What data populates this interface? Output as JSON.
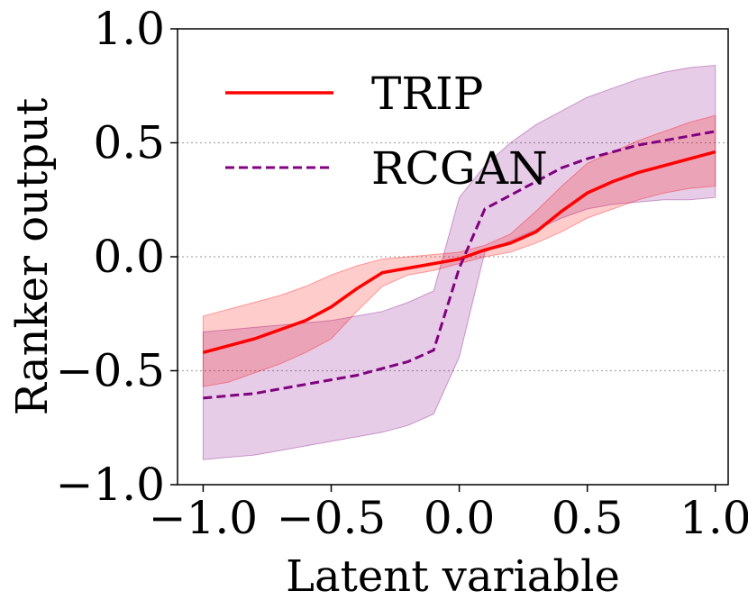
{
  "chart_data": {
    "type": "line",
    "title": "",
    "xlabel": "Latent variable",
    "ylabel": "Ranker output",
    "xlim": [
      -1.1,
      1.05
    ],
    "ylim": [
      -1.0,
      1.0
    ],
    "x_ticks": [
      -1.0,
      -0.5,
      0.0,
      0.5,
      1.0
    ],
    "x_tick_labels": [
      "−1.0",
      "−0.5",
      "0.0",
      "0.5",
      "1.0"
    ],
    "y_ticks": [
      -1.0,
      -0.5,
      0.0,
      0.5,
      1.0
    ],
    "y_tick_labels": [
      "−1.0",
      "−0.5",
      "0.0",
      "0.5",
      "1.0"
    ],
    "grid": "horizontal dotted",
    "legend_position": "top-left",
    "series": [
      {
        "name": "TRIP",
        "color": "#ff0000",
        "line_style": "solid",
        "x": [
          -1.0,
          -0.9,
          -0.8,
          -0.7,
          -0.6,
          -0.5,
          -0.4,
          -0.3,
          -0.2,
          -0.1,
          0.0,
          0.1,
          0.2,
          0.3,
          0.4,
          0.5,
          0.6,
          0.7,
          0.8,
          0.9,
          1.0
        ],
        "values": [
          -0.42,
          -0.39,
          -0.36,
          -0.32,
          -0.28,
          -0.22,
          -0.14,
          -0.07,
          -0.05,
          -0.03,
          -0.01,
          0.03,
          0.06,
          0.11,
          0.2,
          0.28,
          0.33,
          0.37,
          0.4,
          0.43,
          0.46
        ],
        "lower": [
          -0.57,
          -0.55,
          -0.51,
          -0.47,
          -0.42,
          -0.36,
          -0.24,
          -0.13,
          -0.08,
          -0.06,
          -0.03,
          0.0,
          0.02,
          0.06,
          0.11,
          0.17,
          0.21,
          0.25,
          0.28,
          0.3,
          0.31
        ],
        "upper": [
          -0.26,
          -0.23,
          -0.2,
          -0.17,
          -0.13,
          -0.08,
          -0.04,
          -0.01,
          0.0,
          0.01,
          0.02,
          0.05,
          0.1,
          0.2,
          0.31,
          0.41,
          0.46,
          0.51,
          0.55,
          0.59,
          0.62
        ]
      },
      {
        "name": "RCGAN",
        "color": "#800080",
        "line_style": "dashed",
        "x": [
          -1.0,
          -0.9,
          -0.8,
          -0.7,
          -0.6,
          -0.5,
          -0.4,
          -0.3,
          -0.2,
          -0.1,
          0.0,
          0.1,
          0.2,
          0.3,
          0.4,
          0.5,
          0.6,
          0.7,
          0.8,
          0.9,
          1.0
        ],
        "values": [
          -0.62,
          -0.61,
          -0.6,
          -0.58,
          -0.56,
          -0.54,
          -0.52,
          -0.49,
          -0.46,
          -0.41,
          -0.05,
          0.21,
          0.27,
          0.33,
          0.39,
          0.43,
          0.46,
          0.49,
          0.51,
          0.53,
          0.55
        ],
        "lower": [
          -0.89,
          -0.88,
          -0.87,
          -0.85,
          -0.83,
          -0.81,
          -0.79,
          -0.77,
          -0.74,
          -0.69,
          -0.44,
          0.02,
          0.07,
          0.12,
          0.17,
          0.21,
          0.23,
          0.24,
          0.25,
          0.25,
          0.26
        ],
        "upper": [
          -0.33,
          -0.32,
          -0.31,
          -0.3,
          -0.29,
          -0.28,
          -0.26,
          -0.24,
          -0.2,
          -0.15,
          0.26,
          0.4,
          0.5,
          0.58,
          0.64,
          0.7,
          0.74,
          0.78,
          0.81,
          0.83,
          0.84
        ]
      }
    ]
  }
}
